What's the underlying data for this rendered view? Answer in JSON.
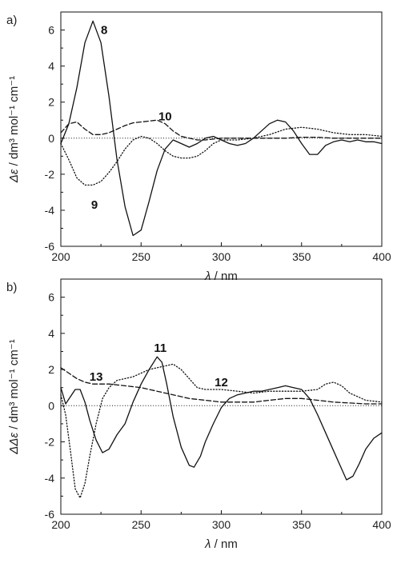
{
  "chart_data": [
    {
      "type": "line",
      "panel_label": "a)",
      "xlabel_symbol": "λ",
      "xlabel_unit": " / nm",
      "ylabel_symbol": "Δε",
      "ylabel_unit": " / dm³ mol⁻¹ cm⁻¹",
      "xlim": [
        200,
        400
      ],
      "ylim": [
        -6,
        7
      ],
      "x_ticks": [
        200,
        250,
        300,
        350,
        400
      ],
      "y_ticks": [
        6,
        4,
        2,
        0,
        -2,
        -4,
        -6
      ],
      "grid": false,
      "series": [
        {
          "name": "8",
          "style": "solid",
          "x": [
            200,
            205,
            210,
            215,
            220,
            225,
            230,
            235,
            240,
            245,
            250,
            255,
            260,
            265,
            270,
            275,
            280,
            285,
            290,
            295,
            300,
            305,
            310,
            315,
            320,
            325,
            330,
            335,
            340,
            345,
            350,
            355,
            360,
            365,
            370,
            375,
            380,
            385,
            390,
            395,
            400
          ],
          "y": [
            -0.3,
            0.8,
            2.8,
            5.3,
            6.5,
            5.3,
            2.3,
            -1.2,
            -3.8,
            -5.4,
            -5.1,
            -3.5,
            -1.8,
            -0.6,
            -0.1,
            -0.3,
            -0.5,
            -0.3,
            0.0,
            0.1,
            -0.1,
            -0.3,
            -0.4,
            -0.3,
            0.0,
            0.4,
            0.8,
            1.0,
            0.9,
            0.4,
            -0.3,
            -0.9,
            -0.9,
            -0.4,
            -0.2,
            -0.1,
            -0.2,
            -0.1,
            -0.2,
            -0.2,
            -0.3
          ]
        },
        {
          "name": "9",
          "style": "dotted",
          "x": [
            200,
            205,
            210,
            215,
            220,
            225,
            230,
            235,
            240,
            245,
            250,
            255,
            260,
            265,
            270,
            275,
            280,
            285,
            290,
            295,
            300,
            310,
            320,
            330,
            340,
            350,
            360,
            370,
            380,
            390,
            400
          ],
          "y": [
            -0.3,
            -1.2,
            -2.2,
            -2.6,
            -2.6,
            -2.4,
            -1.9,
            -1.3,
            -0.6,
            -0.1,
            0.1,
            0.0,
            -0.3,
            -0.7,
            -1.0,
            -1.1,
            -1.1,
            -1.0,
            -0.7,
            -0.3,
            -0.1,
            -0.1,
            0.0,
            0.2,
            0.5,
            0.6,
            0.5,
            0.3,
            0.2,
            0.2,
            0.1
          ]
        },
        {
          "name": "10",
          "style": "dashed",
          "x": [
            200,
            205,
            210,
            215,
            220,
            225,
            230,
            235,
            240,
            245,
            250,
            255,
            260,
            265,
            270,
            275,
            280,
            285,
            290,
            300,
            310,
            320,
            330,
            340,
            350,
            360,
            370,
            380,
            390,
            400
          ],
          "y": [
            0.3,
            0.8,
            0.9,
            0.5,
            0.2,
            0.2,
            0.3,
            0.5,
            0.7,
            0.85,
            0.9,
            0.95,
            1.0,
            0.8,
            0.4,
            0.1,
            0.0,
            -0.1,
            -0.1,
            0.0,
            0.0,
            0.0,
            0.0,
            0.0,
            0.05,
            0.05,
            0.0,
            0.0,
            0.0,
            0.0
          ]
        }
      ],
      "annotations": [
        {
          "text": "8",
          "x": 227,
          "y": 6.0
        },
        {
          "text": "10",
          "x": 265,
          "y": 1.2
        },
        {
          "text": "9",
          "x": 221,
          "y": -3.7
        }
      ]
    },
    {
      "type": "line",
      "panel_label": "b)",
      "xlabel_symbol": "λ",
      "xlabel_unit": " / nm",
      "ylabel_symbol": "ΔΔε",
      "ylabel_unit": " / dm³ mol⁻¹ cm⁻¹",
      "xlim": [
        200,
        400
      ],
      "ylim": [
        -6,
        7
      ],
      "x_ticks": [
        200,
        250,
        300,
        350,
        400
      ],
      "y_ticks": [
        6,
        4,
        2,
        0,
        -2,
        -4,
        -6
      ],
      "grid": false,
      "series": [
        {
          "name": "11",
          "style": "solid",
          "x": [
            200,
            203,
            206,
            209,
            212,
            215,
            218,
            222,
            226,
            230,
            235,
            240,
            245,
            250,
            255,
            260,
            263,
            266,
            270,
            275,
            280,
            283,
            287,
            290,
            295,
            300,
            305,
            310,
            315,
            320,
            325,
            330,
            335,
            340,
            345,
            350,
            355,
            360,
            365,
            370,
            375,
            378,
            382,
            386,
            390,
            395,
            400
          ],
          "y": [
            1.0,
            0.1,
            0.5,
            0.9,
            0.9,
            0.2,
            -0.8,
            -1.9,
            -2.6,
            -2.4,
            -1.6,
            -1.0,
            0.2,
            1.2,
            2.0,
            2.7,
            2.4,
            1.2,
            -0.6,
            -2.3,
            -3.3,
            -3.4,
            -2.8,
            -2.0,
            -1.0,
            -0.1,
            0.4,
            0.6,
            0.7,
            0.8,
            0.8,
            0.9,
            1.0,
            1.1,
            1.0,
            0.9,
            0.4,
            -0.5,
            -1.5,
            -2.5,
            -3.5,
            -4.1,
            -3.9,
            -3.2,
            -2.4,
            -1.8,
            -1.5
          ]
        },
        {
          "name": "12",
          "style": "dotted",
          "x": [
            200,
            203,
            206,
            209,
            212,
            215,
            218,
            222,
            226,
            230,
            235,
            240,
            245,
            250,
            255,
            260,
            265,
            270,
            275,
            280,
            285,
            290,
            295,
            300,
            310,
            320,
            330,
            340,
            350,
            360,
            365,
            370,
            375,
            380,
            390,
            400
          ],
          "y": [
            0.6,
            -0.5,
            -2.5,
            -4.6,
            -5.1,
            -4.3,
            -2.8,
            -1.0,
            0.4,
            1.0,
            1.4,
            1.5,
            1.6,
            1.8,
            2.0,
            2.1,
            2.2,
            2.3,
            2.0,
            1.5,
            1.0,
            0.9,
            0.9,
            0.9,
            0.8,
            0.7,
            0.8,
            0.8,
            0.8,
            0.9,
            1.2,
            1.3,
            1.1,
            0.7,
            0.3,
            0.2
          ]
        },
        {
          "name": "13",
          "style": "dashed",
          "x": [
            200,
            205,
            210,
            215,
            220,
            230,
            240,
            250,
            260,
            270,
            280,
            290,
            300,
            310,
            320,
            330,
            340,
            350,
            360,
            370,
            380,
            390,
            400
          ],
          "y": [
            2.1,
            1.8,
            1.5,
            1.3,
            1.2,
            1.2,
            1.1,
            1.0,
            0.8,
            0.6,
            0.4,
            0.3,
            0.2,
            0.2,
            0.2,
            0.3,
            0.4,
            0.4,
            0.3,
            0.2,
            0.15,
            0.1,
            0.1
          ]
        }
      ],
      "annotations": [
        {
          "text": "11",
          "x": 262,
          "y": 3.2
        },
        {
          "text": "13",
          "x": 222,
          "y": 1.6
        },
        {
          "text": "12",
          "x": 300,
          "y": 1.3
        }
      ]
    }
  ]
}
